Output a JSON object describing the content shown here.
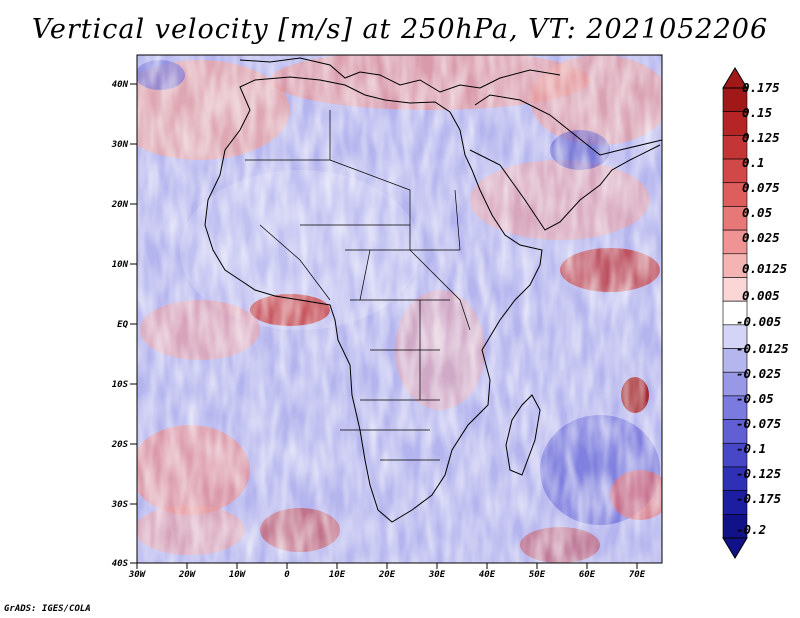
{
  "title": "Vertical velocity [m/s] at 250hPa, VT: 2021052206",
  "credit": "GrADS: IGES/COLA",
  "lat_labels": [
    "40N",
    "30N",
    "20N",
    "10N",
    "EQ",
    "10S",
    "20S",
    "30S",
    "40S"
  ],
  "lon_labels": [
    "30W",
    "20W",
    "10W",
    "0",
    "10E",
    "20E",
    "30E",
    "40E",
    "50E",
    "60E",
    "70E"
  ],
  "colorbar": {
    "labels": [
      "0.175",
      "0.15",
      "0.125",
      "0.1",
      "0.075",
      "0.05",
      "0.025",
      "0.0125",
      "0.005",
      "-0.005",
      "-0.0125",
      "-0.025",
      "-0.05",
      "-0.075",
      "-0.1",
      "-0.125",
      "-0.175",
      "-0.2"
    ],
    "colors": [
      "#a01818",
      "#b52525",
      "#c43636",
      "#d24848",
      "#de5d5d",
      "#e67878",
      "#ee9494",
      "#f5b4b4",
      "#fad6d6",
      "#ffffff",
      "#d4d4f7",
      "#b6b6ef",
      "#9898e7",
      "#7b7bdf",
      "#6060d4",
      "#4747c7",
      "#3030b6",
      "#1d1da2",
      "#121288"
    ]
  },
  "colors": {
    "positive": "#e05050",
    "negative": "#5050d0",
    "coastline": "#000000"
  }
}
